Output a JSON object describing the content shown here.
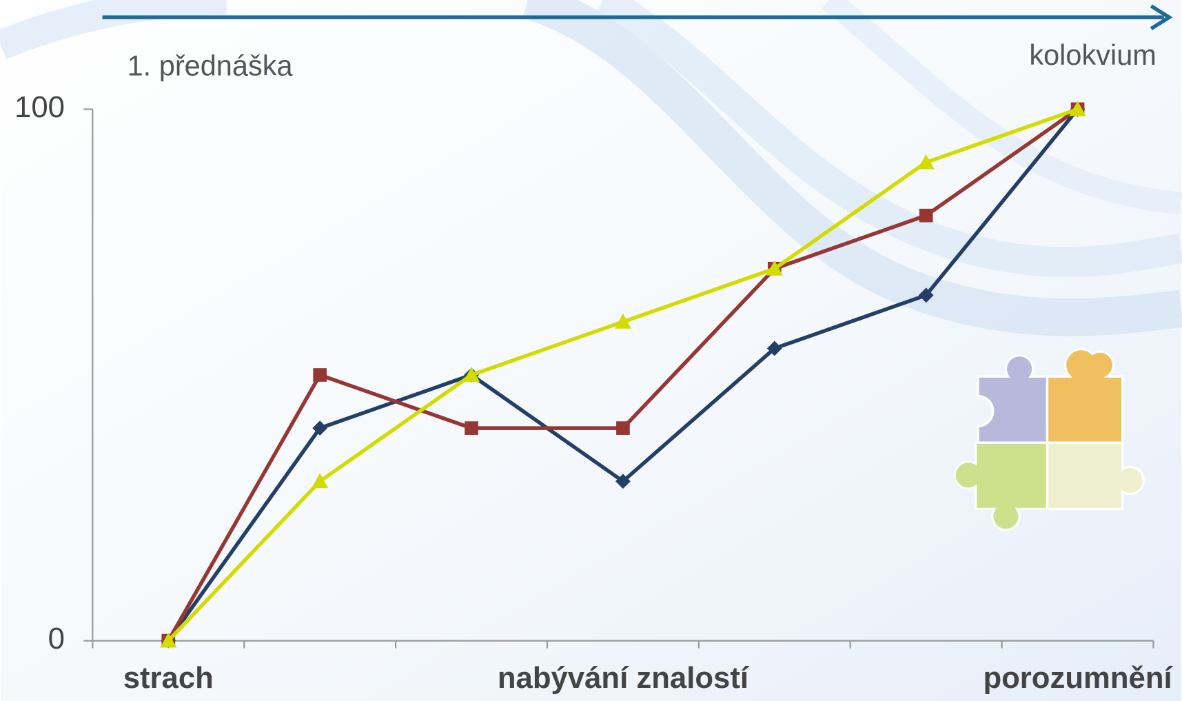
{
  "chart_data": {
    "type": "line",
    "annotations": [
      "1. přednáška",
      "kolokvium"
    ],
    "categories": [
      "strach",
      null,
      null,
      "nabývání znalostí",
      null,
      null,
      "porozumnění"
    ],
    "series": [
      {
        "color": "#243f66",
        "marker": "diamond",
        "values": [
          0,
          40,
          50,
          30,
          55,
          65,
          100
        ]
      },
      {
        "color": "#953735",
        "marker": "square",
        "values": [
          0,
          50,
          40,
          40,
          70,
          80,
          100
        ]
      },
      {
        "color": "#d2dc00",
        "marker": "triangle",
        "values": [
          0,
          30,
          50,
          60,
          70,
          90,
          100
        ]
      }
    ],
    "ylim": [
      0,
      100
    ],
    "yticks": [
      0,
      100
    ],
    "grid": false
  }
}
